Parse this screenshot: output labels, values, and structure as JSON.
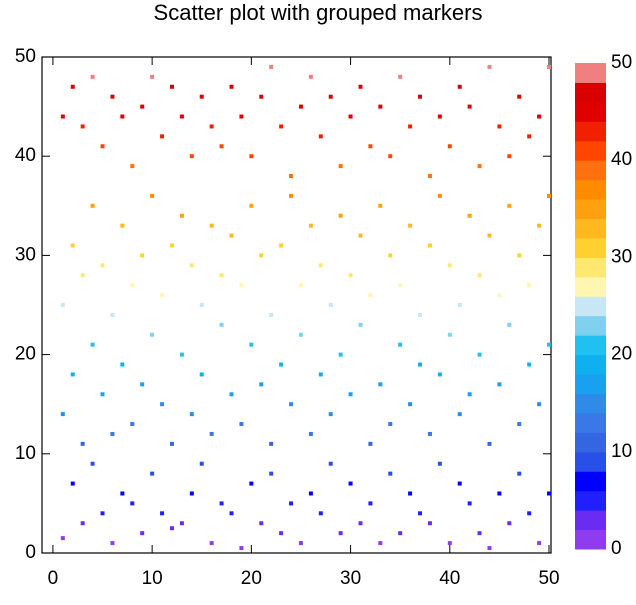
{
  "chart_data": {
    "type": "scatter",
    "title": "Scatter plot with grouped markers",
    "xlim": [
      -1.1,
      50.2
    ],
    "ylim": [
      0,
      50
    ],
    "xticks": [
      0,
      10,
      20,
      30,
      40,
      50
    ],
    "yticks": [
      0,
      10,
      20,
      30,
      40,
      50
    ],
    "x": [
      1,
      1,
      1,
      1,
      2,
      2,
      2,
      2,
      3,
      3,
      3,
      3,
      4,
      4,
      4,
      4,
      5,
      5,
      5,
      5,
      6,
      6,
      6,
      6,
      7,
      7,
      7,
      7,
      8,
      8,
      8,
      8,
      9,
      9,
      9,
      9,
      10,
      10,
      10,
      10,
      11,
      11,
      11,
      11,
      12,
      12,
      12,
      12,
      13,
      13,
      13,
      13,
      14,
      14,
      14,
      14,
      15,
      15,
      15,
      15,
      16,
      16,
      16,
      16,
      17,
      17,
      17,
      17,
      18,
      18,
      18,
      18,
      19,
      19,
      19,
      19,
      20,
      20,
      20,
      20,
      21,
      21,
      21,
      21,
      22,
      22,
      22,
      22,
      23,
      23,
      23,
      23,
      24,
      24,
      24,
      24,
      25,
      25,
      25,
      25,
      26,
      26,
      26,
      26,
      27,
      27,
      27,
      27,
      28,
      28,
      28,
      28,
      29,
      29,
      29,
      29,
      30,
      30,
      30,
      30,
      31,
      31,
      31,
      31,
      32,
      32,
      32,
      32,
      33,
      33,
      33,
      33,
      34,
      34,
      34,
      34,
      35,
      35,
      35,
      35,
      36,
      36,
      36,
      36,
      37,
      37,
      37,
      37,
      38,
      38,
      38,
      38,
      39,
      39,
      39,
      39,
      40,
      40,
      40,
      40,
      41,
      41,
      41,
      41,
      42,
      42,
      42,
      42,
      43,
      43,
      43,
      43,
      44,
      44,
      44,
      44,
      45,
      45,
      45,
      45,
      46,
      46,
      46,
      46,
      47,
      47,
      47,
      47,
      48,
      48,
      48,
      48,
      49,
      49,
      49,
      49,
      50,
      50,
      50,
      50
    ],
    "y": [
      1.5,
      14,
      25,
      44,
      7,
      18,
      31,
      47,
      3,
      11,
      28,
      43,
      9,
      21,
      35,
      48,
      4,
      16,
      29,
      41,
      1,
      12,
      24,
      46,
      6,
      19,
      33,
      44,
      5,
      13,
      27,
      39,
      2,
      17,
      30,
      45,
      8,
      22,
      36,
      48,
      4,
      15,
      26,
      42,
      2.5,
      11,
      31,
      47,
      3,
      20,
      34,
      44,
      6,
      14,
      29,
      40,
      9,
      18,
      25,
      46,
      1,
      12,
      33,
      43,
      5,
      23,
      28,
      41,
      4,
      16,
      32,
      47,
      0.5,
      13,
      27,
      44,
      7,
      21,
      35,
      40,
      3,
      17,
      30,
      46,
      8,
      11,
      24,
      49,
      2,
      19,
      31,
      43,
      5,
      15,
      36,
      38,
      1,
      22,
      27,
      45,
      6,
      12,
      33,
      48,
      4,
      18,
      29,
      42,
      9,
      14,
      25,
      46,
      2,
      20,
      34,
      39,
      7,
      16,
      28,
      44,
      3,
      23,
      32,
      47,
      5,
      11,
      26,
      41,
      1,
      17,
      35,
      45,
      8,
      13,
      30,
      40,
      2,
      21,
      27,
      48,
      6,
      15,
      33,
      43,
      4,
      19,
      24,
      46,
      3,
      12,
      31,
      38,
      9,
      18,
      36,
      44,
      1,
      22,
      29,
      41,
      7,
      14,
      25,
      47,
      5,
      16,
      34,
      45,
      2,
      20,
      28,
      39,
      0.5,
      11,
      32,
      49,
      6,
      17,
      26,
      43,
      3,
      23,
      35,
      40,
      8,
      13,
      30,
      46,
      4,
      19,
      27,
      42,
      1,
      15,
      33,
      44,
      6,
      21,
      36,
      49
    ],
    "colorbar": {
      "lim": [
        0,
        50
      ],
      "ticks": [
        0,
        10,
        20,
        30,
        40,
        50
      ],
      "colors": [
        "#8f3cf0",
        "#6a2cf0",
        "#2020ff",
        "#0000ff",
        "#2850e8",
        "#3366e0",
        "#3a78e8",
        "#2e8ce8",
        "#1aa0f0",
        "#10b0f0",
        "#20c0f0",
        "#80d0f0",
        "#c8e6f4",
        "#fff7b0",
        "#ffe870",
        "#ffd030",
        "#ffb820",
        "#ffa010",
        "#ff8c00",
        "#ff7010",
        "#ff4500",
        "#f02000",
        "#e00000",
        "#d80000",
        "#f08080"
      ]
    }
  }
}
